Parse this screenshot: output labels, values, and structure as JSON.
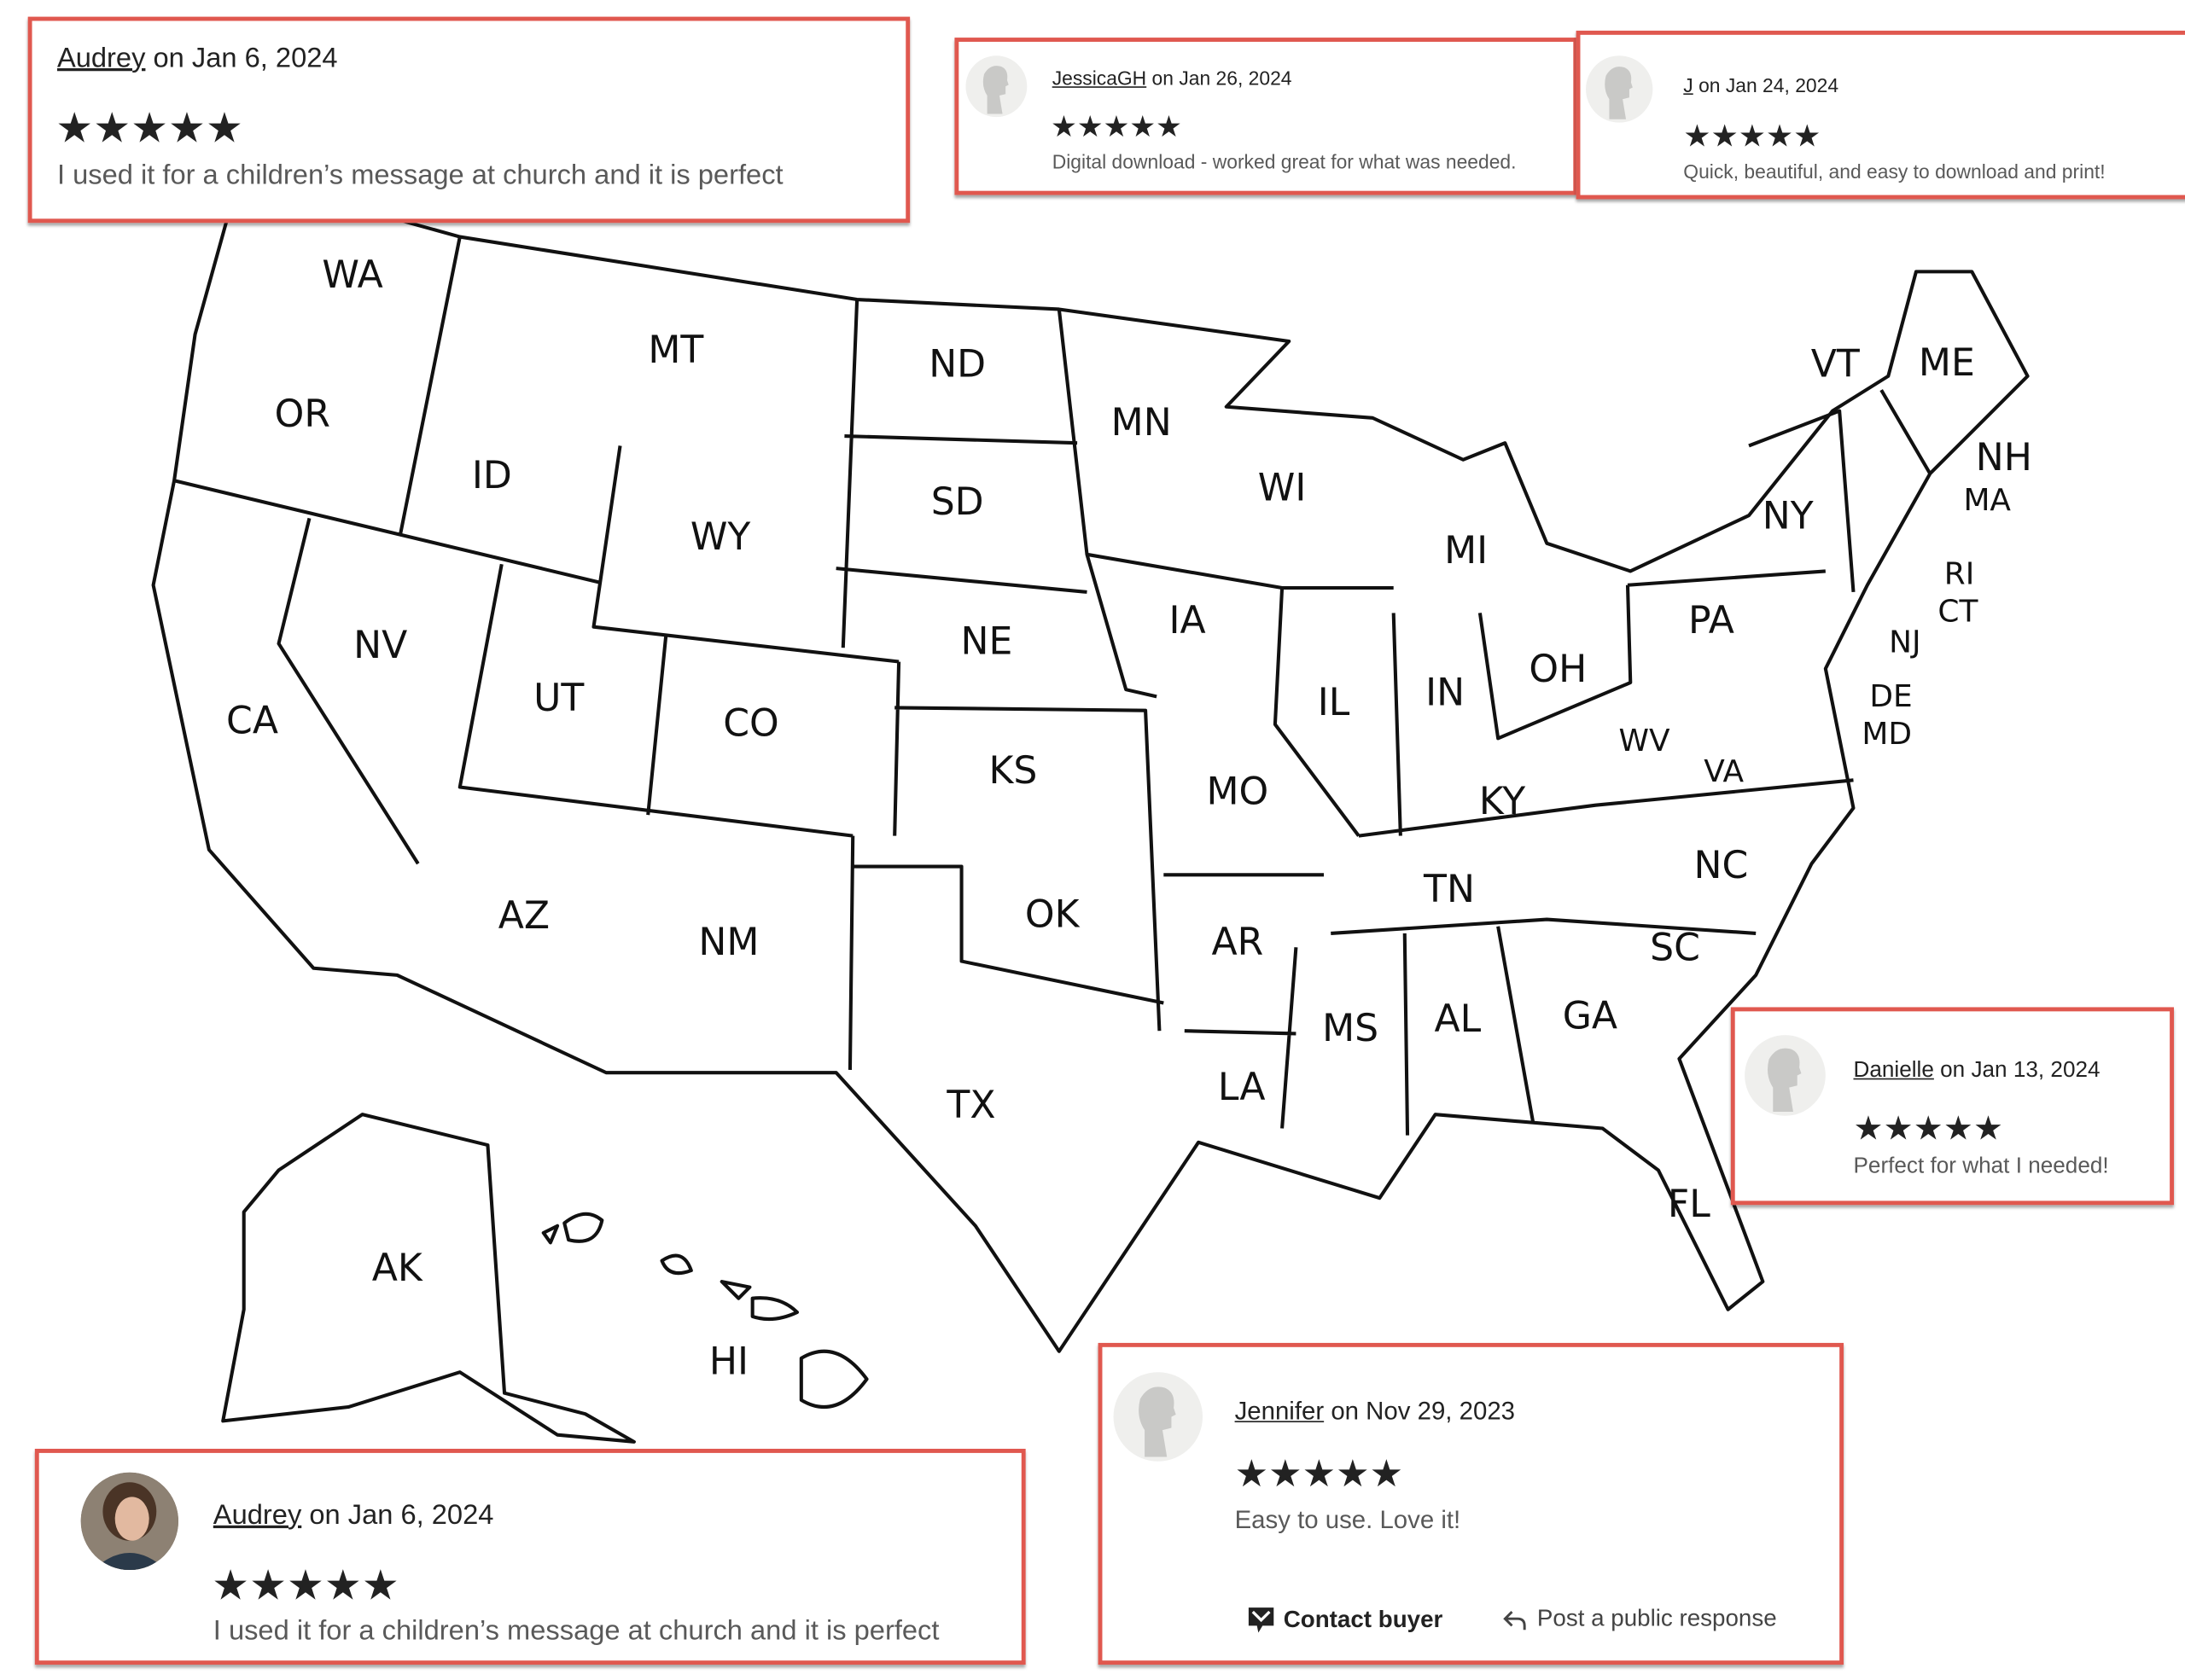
{
  "colors": {
    "card_border": "#e0584f",
    "text": "#222222",
    "comment": "#595959",
    "star": "#222222"
  },
  "map": {
    "states": [
      "WA",
      "OR",
      "CA",
      "NV",
      "ID",
      "MT",
      "WY",
      "UT",
      "CO",
      "AZ",
      "NM",
      "ND",
      "SD",
      "NE",
      "KS",
      "OK",
      "TX",
      "MN",
      "IA",
      "MO",
      "AR",
      "LA",
      "WI",
      "IL",
      "MS",
      "MI",
      "IN",
      "OH",
      "KY",
      "TN",
      "AL",
      "GA",
      "FL",
      "SC",
      "NC",
      "VA",
      "WV",
      "PA",
      "NY",
      "VT",
      "ME",
      "NH",
      "MA",
      "RI",
      "CT",
      "NJ",
      "DE",
      "MD",
      "AK",
      "HI"
    ]
  },
  "reviews": [
    {
      "name": "Audrey",
      "date": "on Jan 6, 2024",
      "stars": "★★★★★",
      "rating": 5,
      "comment": "I used it for a children’s message at church and it is perfect",
      "avatar": "none"
    },
    {
      "name": "JessicaGH",
      "date": "on Jan 26, 2024",
      "stars": "★★★★★",
      "rating": 5,
      "comment": "Digital download - worked great for what was needed.",
      "avatar": "default-avatar-icon"
    },
    {
      "name": "J",
      "date": "on Jan 24, 2024",
      "stars": "★★★★★",
      "rating": 5,
      "comment": "Quick, beautiful, and easy to download and print!",
      "avatar": "default-avatar-icon"
    },
    {
      "name": "Danielle",
      "date": "on Jan 13, 2024",
      "stars": "★★★★★",
      "rating": 5,
      "comment": "Perfect for what I needed!",
      "avatar": "default-avatar-icon"
    },
    {
      "name": "Jennifer",
      "date": "on Nov 29, 2023",
      "stars": "★★★★★",
      "rating": 5,
      "comment": "Easy to use. Love it!",
      "avatar": "default-avatar-icon",
      "actions": {
        "contact": "Contact buyer",
        "respond": "Post a public response"
      }
    },
    {
      "name": "Audrey",
      "date": "on Jan 6, 2024",
      "stars": "★★★★★",
      "rating": 5,
      "comment": "I used it for a children’s message at church and it is perfect",
      "avatar": "user-photo"
    }
  ]
}
